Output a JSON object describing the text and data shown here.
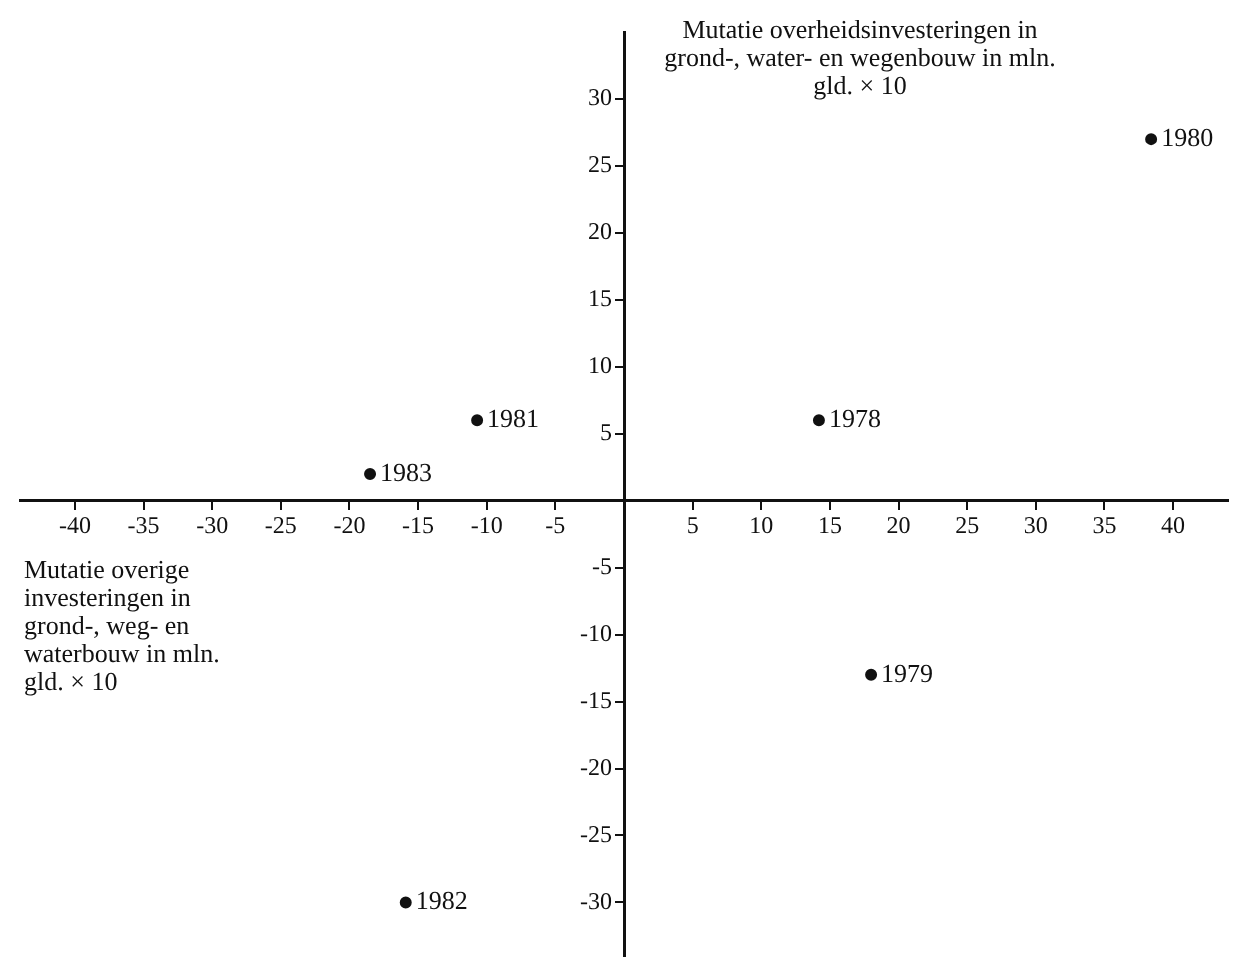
{
  "chart_data": {
    "type": "scatter",
    "xlabel": "Mutatie overige investeringen in grond-, weg- en waterbouw in mln. gld. × 10",
    "ylabel": "Mutatie overheidsinvesteringen in grond-, water- en wegenbouw in mln. gld. × 10",
    "x": [
      14.2,
      18,
      38.4,
      -10.7,
      -15.9,
      -18.5
    ],
    "values": [
      6,
      -13,
      27,
      6,
      -30,
      2
    ],
    "color": "#111111",
    "marker": "circle",
    "grid": false,
    "xlim": [
      -44,
      44
    ],
    "ylim": [
      -34,
      35
    ],
    "xticks": [
      -40,
      -35,
      -30,
      -25,
      -20,
      -15,
      -10,
      -5,
      5,
      10,
      15,
      20,
      25,
      30,
      35,
      40
    ],
    "yticks": [
      -30,
      -25,
      -20,
      -15,
      -10,
      -5,
      5,
      10,
      15,
      20,
      25,
      30
    ],
    "annotations": [
      {
        "text": "1978",
        "x": 14.2,
        "y": 6
      },
      {
        "text": "1979",
        "x": 18,
        "y": -13
      },
      {
        "text": "1980",
        "x": 38.4,
        "y": 27
      },
      {
        "text": "1981",
        "x": -10.7,
        "y": 6
      },
      {
        "text": "1982",
        "x": -15.9,
        "y": -30
      },
      {
        "text": "1983",
        "x": -18.5,
        "y": 2
      }
    ]
  }
}
